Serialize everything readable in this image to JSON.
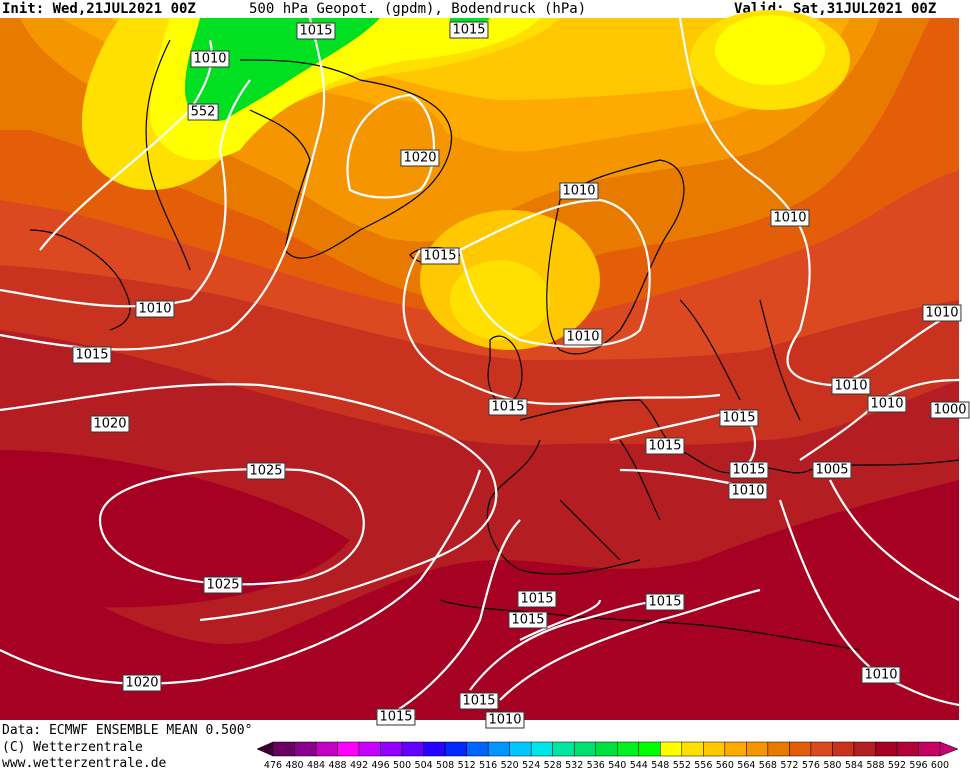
{
  "header": {
    "init": "Init: Wed,21JUL2021 00Z",
    "title": "500 hPa Geopot. (gpdm), Bodendruck (hPa)",
    "valid": "Valid: Sat,31JUL2021 00Z"
  },
  "footer": {
    "data_source": "Data: ECMWF ENSEMBLE MEAN 0.500°",
    "copyright": "(C) Wetterzentrale",
    "url": "www.wetterzentrale.de"
  },
  "colorbar": {
    "ticks": [
      "476",
      "480",
      "484",
      "488",
      "492",
      "496",
      "500",
      "504",
      "508",
      "512",
      "516",
      "520",
      "524",
      "528",
      "532",
      "536",
      "540",
      "544",
      "548",
      "552",
      "556",
      "560",
      "564",
      "568",
      "572",
      "576",
      "580",
      "584",
      "588",
      "592",
      "596",
      "600"
    ],
    "colors": [
      "#3a0032",
      "#680060",
      "#8c0090",
      "#c400c4",
      "#ff00ff",
      "#c800ff",
      "#9600ff",
      "#6400ff",
      "#2800ff",
      "#0028ff",
      "#0064ff",
      "#0096ff",
      "#00c8ff",
      "#00e6e6",
      "#00e6a0",
      "#00e070",
      "#00e040",
      "#00f020",
      "#00ff00",
      "#ffff00",
      "#ffe000",
      "#ffc800",
      "#ffaa00",
      "#f59600",
      "#e87a00",
      "#e45e0a",
      "#dc4820",
      "#c8321e",
      "#b41e22",
      "#a60022",
      "#b4003a",
      "#c80064",
      "#c80078"
    ]
  },
  "isobar_labels": [
    "1015",
    "1015",
    "1010",
    "552",
    "1020",
    "1015",
    "1010",
    "1010",
    "1010",
    "1015",
    "1010",
    "1010",
    "1015",
    "1010",
    "1010",
    "1000",
    "1020",
    "1015",
    "1015",
    "1015",
    "1005",
    "1010",
    "1025",
    "1025",
    "1015",
    "1015",
    "1015",
    "1020",
    "1010",
    "1015",
    "1015",
    "1010"
  ]
}
